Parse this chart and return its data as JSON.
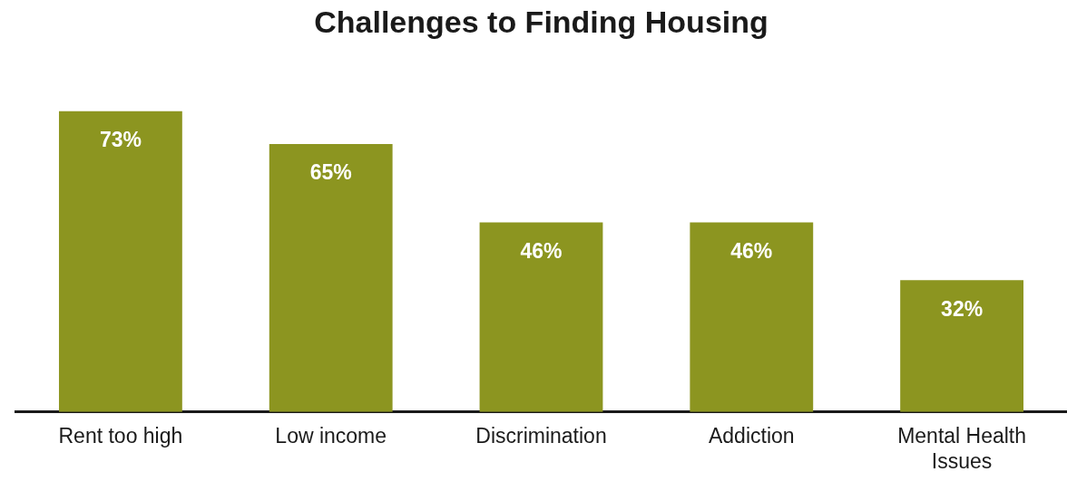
{
  "chart_data": {
    "type": "bar",
    "title": "Challenges to Finding Housing",
    "categories": [
      "Rent too high",
      "Low income",
      "Discrimination",
      "Addiction",
      "Mental Health Issues"
    ],
    "values": [
      73,
      65,
      46,
      46,
      32
    ],
    "value_labels": [
      "73%",
      "65%",
      "46%",
      "46%",
      "32%"
    ],
    "color": "#8c9520",
    "grid": false,
    "legend": false
  }
}
